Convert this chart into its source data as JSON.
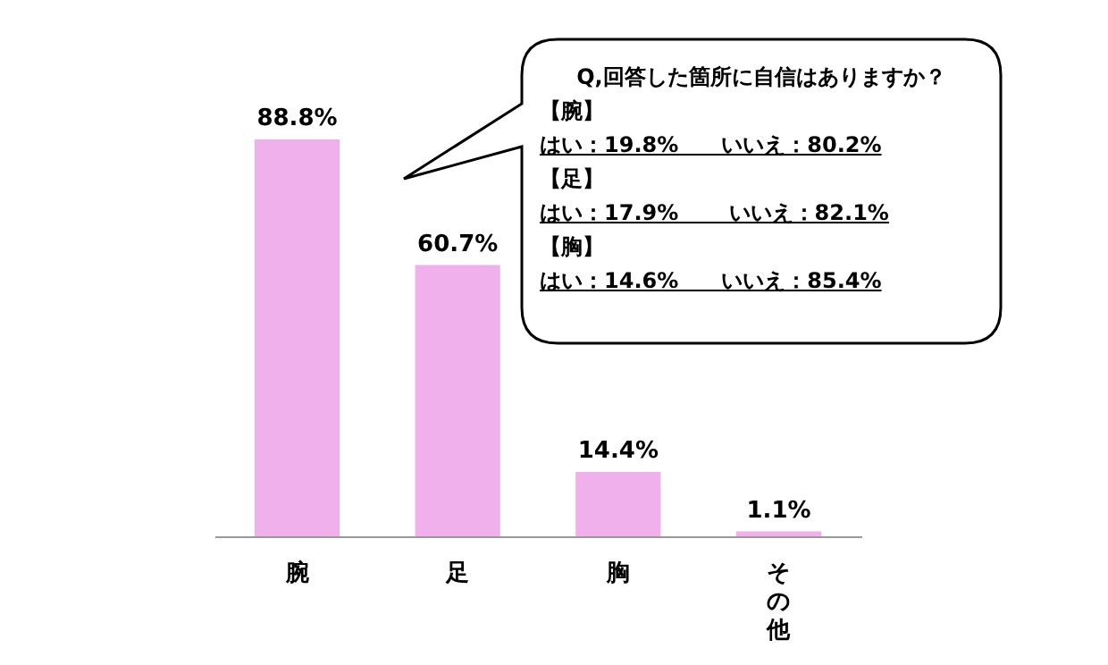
{
  "chart_data": {
    "type": "bar",
    "categories": [
      "腕",
      "足",
      "胸",
      "その他"
    ],
    "values": [
      88.8,
      60.7,
      14.4,
      1.1
    ],
    "value_labels": [
      "88.8%",
      "60.7%",
      "14.4%",
      "1.1%"
    ],
    "color": "#f0b0ec",
    "grid": false,
    "tick_labels": "x",
    "annotations": [
      "Q,回答した箇所に自信はありますか？",
      "【腕】",
      "はい：19.8%　　いいえ：80.2%",
      "【足】",
      "はい：17.9%　　 いいえ：82.1%",
      "【胸】",
      "はい：14.6%　　いいえ：85.4%"
    ]
  }
}
